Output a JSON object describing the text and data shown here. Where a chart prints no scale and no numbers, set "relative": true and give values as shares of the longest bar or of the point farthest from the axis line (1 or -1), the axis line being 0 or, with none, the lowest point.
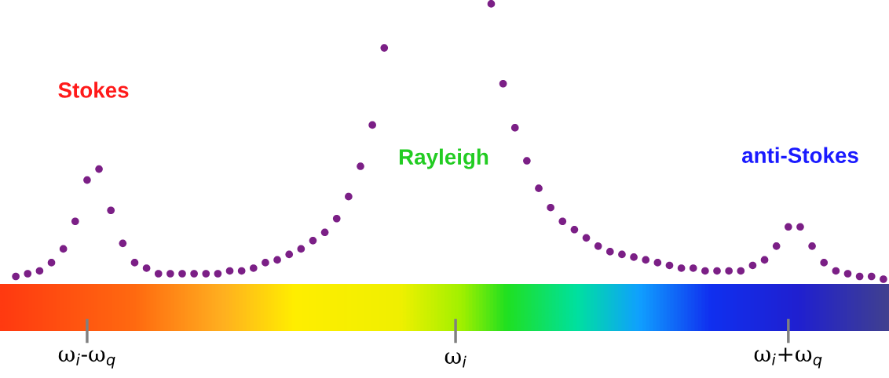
{
  "chart_data": {
    "type": "scatter",
    "relative": true,
    "marker": "circle",
    "grid": false,
    "categories": [
      null,
      null,
      null,
      null,
      null,
      null,
      "ω$_{i}$-ω$_{q}$",
      null,
      null,
      null,
      null,
      null,
      null,
      null,
      null,
      null,
      null,
      null,
      null,
      null,
      null,
      null,
      null,
      null,
      null,
      null,
      null,
      null,
      null,
      null,
      null,
      null,
      null,
      null,
      null,
      null,
      null,
      "ω$_{i}$",
      null,
      null,
      null,
      null,
      null,
      null,
      null,
      null,
      null,
      null,
      null,
      null,
      null,
      null,
      null,
      null,
      null,
      null,
      null,
      null,
      null,
      null,
      null,
      null,
      null,
      null,
      null,
      "ω$_{i}$+ω$_{q}$",
      null,
      null,
      null,
      null,
      null,
      null,
      null,
      null
    ],
    "series": [
      {
        "color": "#7b1f86",
        "values": [
          0.01,
          0.02,
          0.03,
          0.06,
          0.11,
          0.21,
          0.36,
          0.4,
          0.25,
          0.13,
          0.06,
          0.04,
          0.02,
          0.02,
          0.02,
          0.02,
          0.02,
          0.02,
          0.03,
          0.03,
          0.04,
          0.06,
          0.07,
          0.09,
          0.11,
          0.14,
          0.17,
          0.22,
          0.3,
          0.41,
          0.56,
          0.84,
          null,
          null,
          null,
          null,
          null,
          null,
          null,
          null,
          1.0,
          0.71,
          0.55,
          0.43,
          0.33,
          0.26,
          0.21,
          0.18,
          0.15,
          0.12,
          0.1,
          0.09,
          0.08,
          0.07,
          0.06,
          0.05,
          0.04,
          0.04,
          0.03,
          0.03,
          0.03,
          0.03,
          0.05,
          0.07,
          0.12,
          0.19,
          0.19,
          0.12,
          0.06,
          0.03,
          0.02,
          0.01,
          0.01,
          0
        ]
      }
    ],
    "annotations": [
      "Stokes",
      "Rayleigh",
      "anti-Stokes"
    ]
  }
}
